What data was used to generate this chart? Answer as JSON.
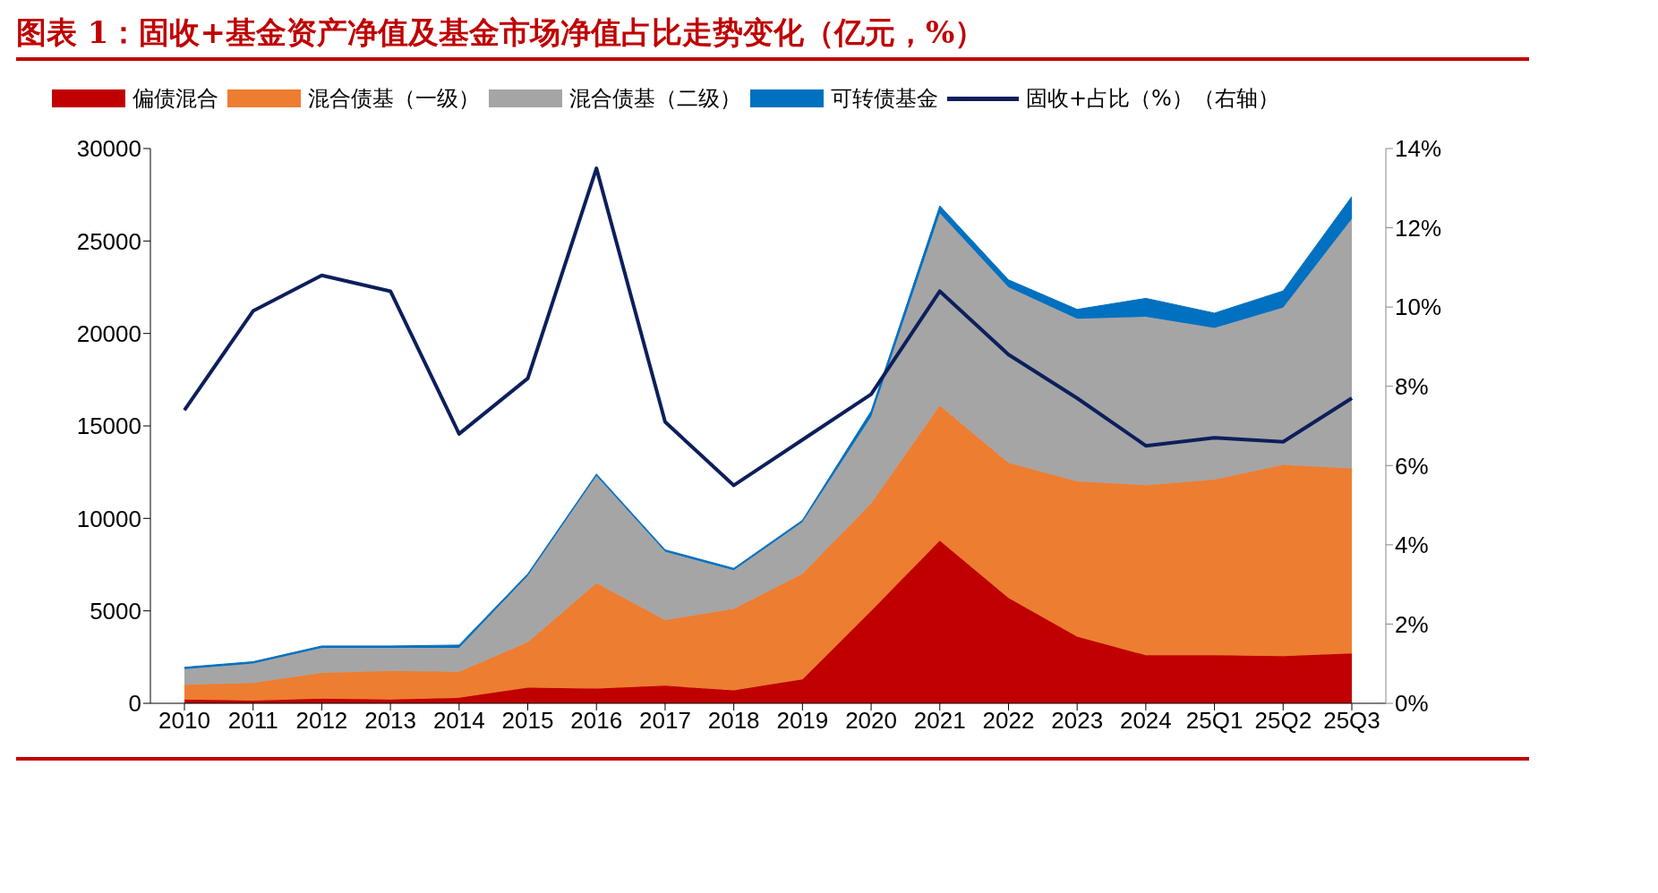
{
  "chart_data": {
    "type": "area",
    "stacked": true,
    "title": "图表 1：固收+基金资产净值及基金市场净值占比走势变化（亿元，%）",
    "categories": [
      "2010",
      "2011",
      "2012",
      "2013",
      "2014",
      "2015",
      "2016",
      "2017",
      "2018",
      "2019",
      "2020",
      "2021",
      "2022",
      "2023",
      "2024",
      "25Q1",
      "25Q2",
      "25Q3"
    ],
    "series": [
      {
        "name": "偏债混合",
        "color": "#c00000",
        "values": [
          200,
          150,
          250,
          200,
          300,
          850,
          800,
          950,
          700,
          1300,
          5000,
          8800,
          5700,
          3600,
          2600,
          2600,
          2550,
          2700
        ]
      },
      {
        "name": "混合债基（一级）",
        "color": "#ed7d31",
        "values": [
          800,
          950,
          1400,
          1550,
          1400,
          2450,
          5700,
          3550,
          4400,
          5700,
          5800,
          7300,
          7300,
          8400,
          9200,
          9500,
          10350,
          10000
        ]
      },
      {
        "name": "混合债基（二级）",
        "color": "#a5a5a5",
        "values": [
          850,
          1050,
          1350,
          1250,
          1300,
          3600,
          5800,
          3700,
          2100,
          2800,
          4700,
          10400,
          9500,
          8800,
          9100,
          8200,
          8500,
          13500
        ]
      },
      {
        "name": "可转债基金",
        "color": "#0070c0",
        "values": [
          100,
          100,
          100,
          100,
          150,
          100,
          100,
          100,
          100,
          100,
          300,
          400,
          400,
          500,
          1000,
          800,
          900,
          1200
        ]
      },
      {
        "name": "固收+占比（%）（右轴）",
        "type": "line",
        "axis": "y2",
        "color": "#0c1f5c",
        "values": [
          7.4,
          9.9,
          10.8,
          10.4,
          6.8,
          8.2,
          13.5,
          7.1,
          5.5,
          6.65,
          7.8,
          10.4,
          8.8,
          7.7,
          6.5,
          6.7,
          6.6,
          7.7
        ]
      }
    ],
    "ylim": [
      0,
      30000
    ],
    "yticks": [
      0,
      5000,
      10000,
      15000,
      20000,
      25000,
      30000
    ],
    "y2lim": [
      0,
      14
    ],
    "y2ticks": [
      {
        "value": 0,
        "label": "0%"
      },
      {
        "value": 2,
        "label": "2%"
      },
      {
        "value": 4,
        "label": "4%"
      },
      {
        "value": 6,
        "label": "6%"
      },
      {
        "value": 8,
        "label": "8%"
      },
      {
        "value": 10,
        "label": "10%"
      },
      {
        "value": 12,
        "label": "12%"
      },
      {
        "value": 14,
        "label": "14%"
      }
    ],
    "legend": "top",
    "grid": false,
    "marker": "none"
  }
}
